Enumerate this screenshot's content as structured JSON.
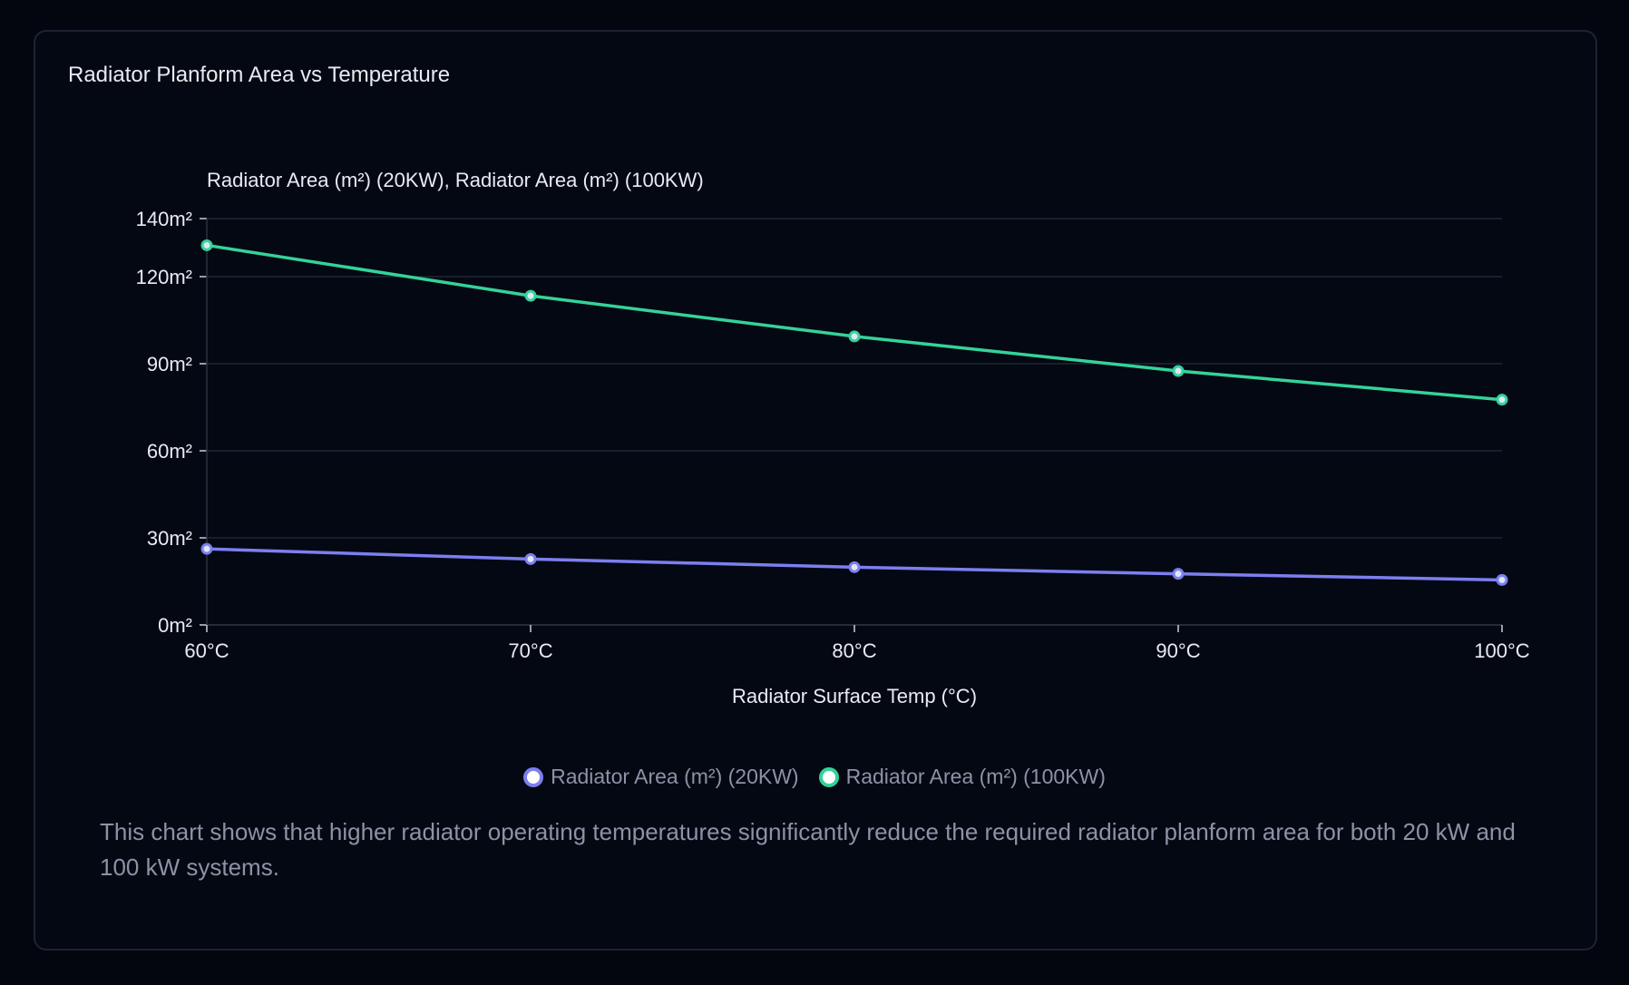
{
  "card": {
    "title": "Radiator Planform Area vs Temperature",
    "description": "This chart shows that higher radiator operating temperatures significantly reduce the required radiator planform area for both 20 kW and 100 kW systems."
  },
  "chart_data": {
    "type": "line",
    "title": "Radiator Planform Area vs Temperature",
    "ylabel": "Radiator Area (m²) (20KW), Radiator Area (m²) (100KW)",
    "xlabel": "Radiator Surface Temp (°C)",
    "categories": [
      "60°C",
      "70°C",
      "80°C",
      "90°C",
      "100°C"
    ],
    "yticks": [
      0,
      30,
      60,
      90,
      120,
      140
    ],
    "ytick_labels": [
      "0m²",
      "30m²",
      "60m²",
      "90m²",
      "120m²",
      "140m²"
    ],
    "ylim": [
      0,
      140
    ],
    "grid": true,
    "legend_position": "bottom",
    "series": [
      {
        "name": "Radiator Area (m²) (20KW)",
        "values": [
          26.2,
          22.7,
          19.9,
          17.6,
          15.5
        ],
        "color": "#7c7ff0"
      },
      {
        "name": "Radiator Area (m²) (100KW)",
        "values": [
          130.8,
          113.4,
          99.4,
          87.5,
          77.6
        ],
        "color": "#34d399"
      }
    ]
  }
}
